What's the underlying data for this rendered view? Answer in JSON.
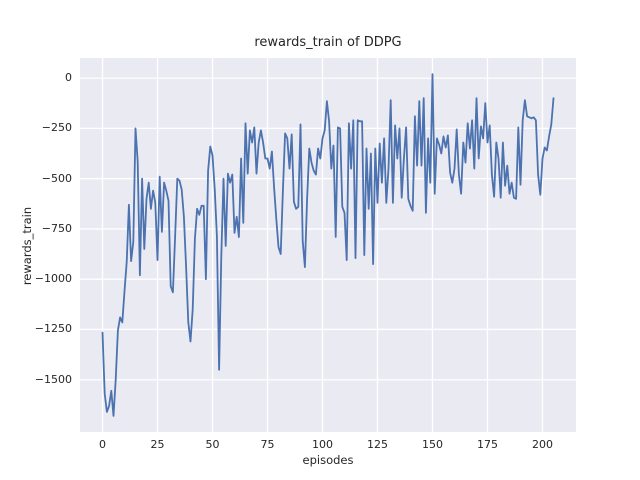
{
  "colors": {
    "figure_bg": "#ffffff",
    "plot_bg": "#eaeaf2",
    "grid": "#ffffff",
    "line": "#4c72b0",
    "text": "#262626"
  },
  "chart_data": {
    "type": "line",
    "title": "rewards_train of DDPG",
    "xlabel": "episodes",
    "ylabel": "rewards_train",
    "x_ticks": [
      0,
      25,
      50,
      75,
      100,
      125,
      150,
      175,
      200
    ],
    "y_ticks": [
      0,
      -250,
      -500,
      -750,
      -1000,
      -1250,
      -1500
    ],
    "xlim": [
      -10.25,
      215.25
    ],
    "ylim": [
      -1760,
      100
    ],
    "grid": true,
    "legend": "none",
    "series": [
      {
        "name": "rewards_train",
        "x_start": 0,
        "x_step": 1,
        "values": [
          -1265,
          -1570,
          -1660,
          -1630,
          -1555,
          -1680,
          -1500,
          -1255,
          -1190,
          -1215,
          -1060,
          -915,
          -630,
          -910,
          -815,
          -250,
          -415,
          -980,
          -500,
          -850,
          -600,
          -520,
          -650,
          -560,
          -620,
          -905,
          -490,
          -765,
          -520,
          -560,
          -610,
          -1035,
          -1065,
          -790,
          -500,
          -510,
          -555,
          -690,
          -940,
          -1215,
          -1310,
          -1150,
          -800,
          -650,
          -680,
          -635,
          -635,
          -1000,
          -460,
          -340,
          -385,
          -550,
          -785,
          -1450,
          -885,
          -500,
          -835,
          -475,
          -520,
          -480,
          -770,
          -690,
          -790,
          -400,
          -720,
          -225,
          -475,
          -260,
          -320,
          -245,
          -475,
          -320,
          -260,
          -320,
          -400,
          -400,
          -450,
          -365,
          -545,
          -700,
          -840,
          -875,
          -560,
          -275,
          -300,
          -450,
          -280,
          -615,
          -650,
          -640,
          -230,
          -810,
          -940,
          -600,
          -350,
          -420,
          -460,
          -480,
          -350,
          -400,
          -300,
          -260,
          -115,
          -215,
          -450,
          -335,
          -790,
          -245,
          -250,
          -640,
          -670,
          -905,
          -225,
          -450,
          -210,
          -895,
          -210,
          -215,
          -215,
          -880,
          -350,
          -650,
          -375,
          -925,
          -350,
          -620,
          -325,
          -520,
          -300,
          -620,
          -450,
          -110,
          -620,
          -235,
          -400,
          -250,
          -595,
          -400,
          -245,
          -600,
          -635,
          -660,
          -190,
          -435,
          -115,
          -435,
          -100,
          -670,
          -300,
          -520,
          20,
          -575,
          -300,
          -330,
          -375,
          -290,
          -345,
          -285,
          -470,
          -520,
          -450,
          -255,
          -480,
          -575,
          -320,
          -420,
          -225,
          -350,
          -210,
          -450,
          -100,
          -400,
          -240,
          -300,
          -125,
          -320,
          -235,
          -480,
          -590,
          -320,
          -400,
          -595,
          -320,
          -535,
          -435,
          -575,
          -520,
          -595,
          -600,
          -245,
          -530,
          -210,
          -110,
          -190,
          -195,
          -200,
          -195,
          -210,
          -480,
          -580,
          -400,
          -345,
          -360,
          -290,
          -230,
          -100
        ]
      }
    ]
  }
}
